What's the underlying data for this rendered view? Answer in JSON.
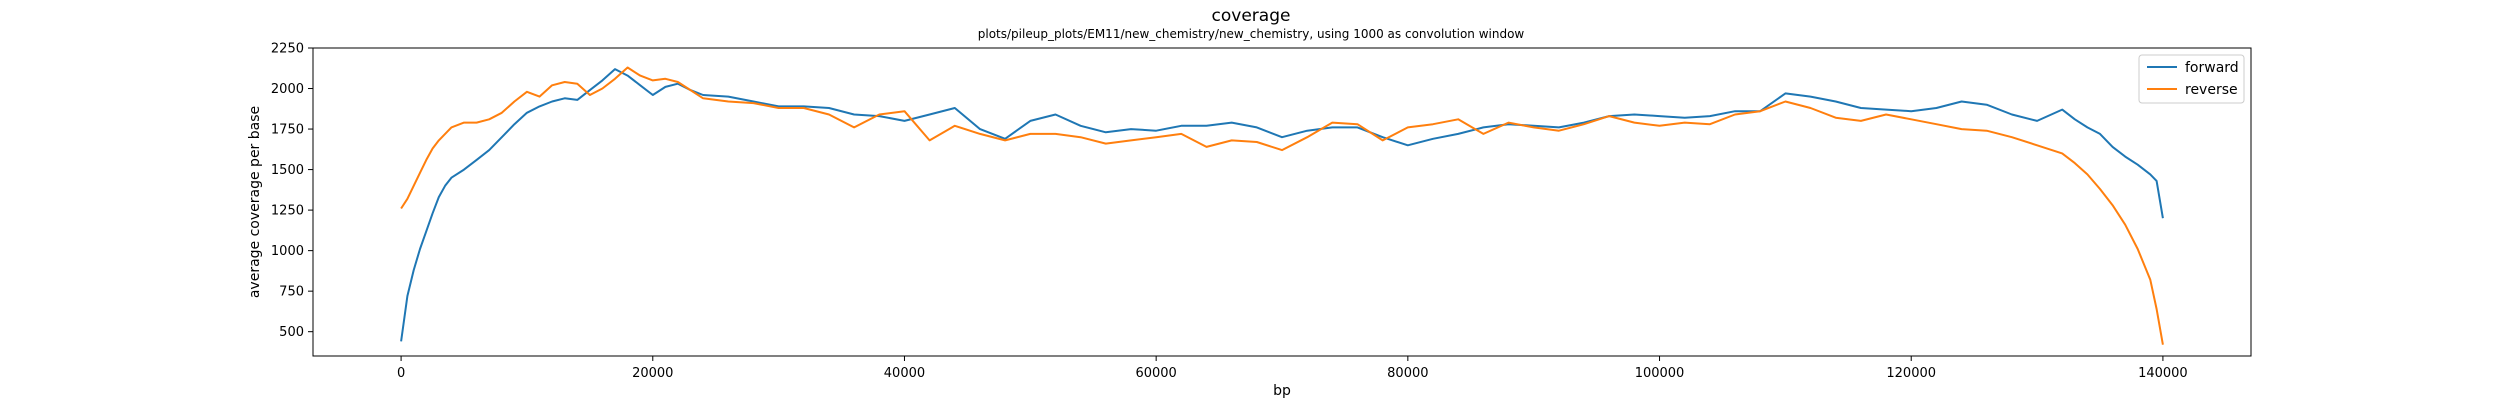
{
  "chart_data": {
    "type": "line",
    "title": "coverage",
    "subtitle": "plots/pileup_plots/EM11/new_chemistry/new_chemistry, using 1000 as convolution window",
    "xlabel": "bp",
    "ylabel": "average coverage per base",
    "xlim": [
      -7000,
      147000
    ],
    "ylim": [
      350,
      2250
    ],
    "xticks": [
      0,
      20000,
      40000,
      60000,
      80000,
      100000,
      120000,
      140000
    ],
    "yticks": [
      500,
      750,
      1000,
      1250,
      1500,
      1750,
      2000,
      2250
    ],
    "grid": false,
    "legend": {
      "position": "top-right",
      "entries": [
        "forward",
        "reverse"
      ]
    },
    "series": [
      {
        "name": "forward",
        "color": "#1f77b4",
        "x": [
          0,
          500,
          1000,
          1500,
          2000,
          2500,
          3000,
          3500,
          4000,
          5000,
          6000,
          7000,
          8000,
          9000,
          10000,
          11000,
          12000,
          13000,
          14000,
          15000,
          16000,
          17000,
          18000,
          19000,
          20000,
          21000,
          22000,
          23000,
          24000,
          26000,
          28000,
          30000,
          32000,
          34000,
          36000,
          38000,
          40000,
          42000,
          44000,
          46000,
          48000,
          50000,
          52000,
          54000,
          56000,
          58000,
          60000,
          62000,
          64000,
          66000,
          68000,
          70000,
          72000,
          74000,
          76000,
          78000,
          80000,
          82000,
          84000,
          86000,
          88000,
          90000,
          92000,
          94000,
          96000,
          98000,
          100000,
          102000,
          104000,
          106000,
          108000,
          110000,
          112000,
          114000,
          116000,
          118000,
          120000,
          122000,
          124000,
          126000,
          128000,
          130000,
          132000,
          133000,
          134000,
          135000,
          136000,
          137000,
          138000,
          139000,
          139500,
          140000
        ],
        "y": [
          440,
          720,
          880,
          1010,
          1120,
          1230,
          1330,
          1400,
          1450,
          1500,
          1560,
          1620,
          1700,
          1780,
          1850,
          1890,
          1920,
          1940,
          1930,
          1990,
          2050,
          2120,
          2080,
          2020,
          1960,
          2010,
          2030,
          1990,
          1960,
          1950,
          1920,
          1890,
          1890,
          1880,
          1840,
          1830,
          1800,
          1840,
          1880,
          1750,
          1690,
          1800,
          1840,
          1770,
          1730,
          1750,
          1740,
          1770,
          1770,
          1790,
          1760,
          1700,
          1740,
          1760,
          1760,
          1700,
          1650,
          1690,
          1720,
          1760,
          1780,
          1770,
          1760,
          1790,
          1830,
          1840,
          1830,
          1820,
          1830,
          1860,
          1860,
          1970,
          1950,
          1920,
          1880,
          1870,
          1860,
          1880,
          1920,
          1900,
          1840,
          1800,
          1870,
          1810,
          1760,
          1720,
          1640,
          1580,
          1530,
          1470,
          1430,
          1200
        ]
      },
      {
        "name": "reverse",
        "color": "#ff7f0e",
        "x": [
          0,
          500,
          1000,
          1500,
          2000,
          2500,
          3000,
          3500,
          4000,
          5000,
          6000,
          7000,
          8000,
          9000,
          10000,
          11000,
          12000,
          13000,
          14000,
          15000,
          16000,
          17000,
          18000,
          19000,
          20000,
          21000,
          22000,
          23000,
          24000,
          26000,
          28000,
          30000,
          32000,
          34000,
          36000,
          38000,
          40000,
          42000,
          44000,
          46000,
          48000,
          50000,
          52000,
          54000,
          56000,
          58000,
          60000,
          62000,
          64000,
          66000,
          68000,
          70000,
          72000,
          74000,
          76000,
          78000,
          80000,
          82000,
          84000,
          86000,
          88000,
          90000,
          92000,
          94000,
          96000,
          98000,
          100000,
          102000,
          104000,
          106000,
          108000,
          110000,
          112000,
          114000,
          116000,
          118000,
          120000,
          122000,
          124000,
          126000,
          128000,
          130000,
          132000,
          133000,
          134000,
          135000,
          136000,
          137000,
          138000,
          139000,
          139500,
          140000
        ],
        "y": [
          1260,
          1320,
          1400,
          1480,
          1560,
          1630,
          1680,
          1720,
          1760,
          1790,
          1790,
          1810,
          1850,
          1920,
          1980,
          1950,
          2020,
          2040,
          2030,
          1960,
          2000,
          2060,
          2130,
          2080,
          2050,
          2060,
          2040,
          1990,
          1940,
          1920,
          1910,
          1880,
          1880,
          1840,
          1760,
          1840,
          1860,
          1680,
          1770,
          1720,
          1680,
          1720,
          1720,
          1700,
          1660,
          1680,
          1700,
          1720,
          1640,
          1680,
          1670,
          1620,
          1700,
          1790,
          1780,
          1680,
          1760,
          1780,
          1810,
          1720,
          1790,
          1760,
          1740,
          1780,
          1830,
          1790,
          1770,
          1790,
          1780,
          1840,
          1860,
          1920,
          1880,
          1820,
          1800,
          1840,
          1810,
          1780,
          1750,
          1740,
          1700,
          1650,
          1600,
          1540,
          1470,
          1380,
          1280,
          1160,
          1010,
          820,
          640,
          420
        ]
      }
    ]
  }
}
